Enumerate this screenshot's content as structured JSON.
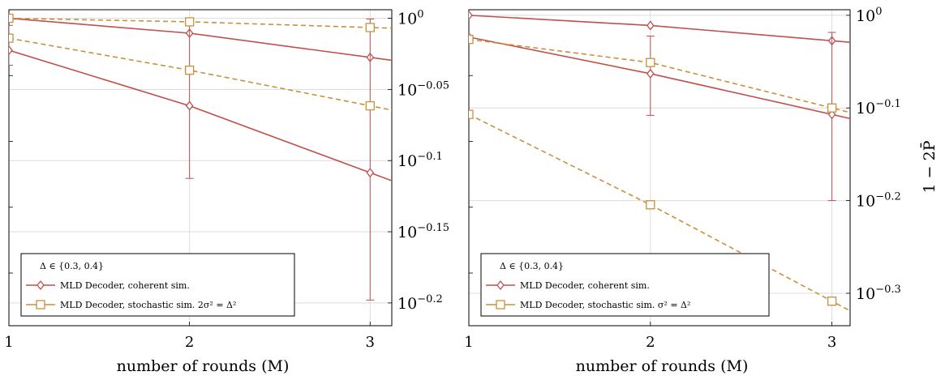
{
  "colors": {
    "coherent": "#c0504d",
    "stochastic": "#c8913a",
    "grid": "#dcdcdc",
    "axis": "#000000"
  },
  "right_axis_label": "1 − 2P̄",
  "chart_data": [
    {
      "type": "line",
      "xlabel": "number of rounds (M)",
      "ylabel": "",
      "x": [
        1,
        2,
        3
      ],
      "xticks": [
        "1",
        "2",
        "3"
      ],
      "xlim": [
        1,
        3.12
      ],
      "yscale": "log10",
      "ylim_log10": [
        -0.216,
        0.006
      ],
      "yticks": [
        {
          "log10": 0,
          "label": "10^0"
        },
        {
          "log10": -0.05,
          "label": "10^−0.05"
        },
        {
          "log10": -0.1,
          "label": "10^−0.1"
        },
        {
          "log10": -0.15,
          "label": "10^−0.15"
        },
        {
          "log10": -0.2,
          "label": "10^−0.2"
        }
      ],
      "grid": true,
      "legend": {
        "placement": "bottom-left",
        "title": "Δ ∈ {0.3, 0.4}",
        "entries": [
          "MLD Decoder, coherent sim.",
          "MLD Decoder, stochastic sim. 2σ² = Δ²"
        ]
      },
      "series": [
        {
          "key": "coherent",
          "marker": "diamond",
          "dash": false,
          "log10": [
            0,
            -0.0105,
            -0.0275
          ]
        },
        {
          "key": "coherent",
          "marker": "diamond",
          "dash": false,
          "log10": [
            -0.0225,
            -0.0615,
            -0.1085
          ],
          "err": [
            {
              "lo": -0.033,
              "hi": -0.005
            },
            {
              "lo": -0.1125,
              "hi": -0.0005
            },
            {
              "lo": -0.198,
              "hi": -0.0005
            }
          ]
        },
        {
          "key": "stochastic",
          "marker": "square",
          "dash": true,
          "log10": [
            0,
            -0.0025,
            -0.0065
          ]
        },
        {
          "key": "stochastic",
          "marker": "square",
          "dash": true,
          "log10": [
            -0.014,
            -0.0365,
            -0.0615
          ]
        }
      ]
    },
    {
      "type": "line",
      "xlabel": "number of rounds (M)",
      "ylabel": "1 − 2P̄",
      "x": [
        1,
        2,
        3
      ],
      "xticks": [
        "1",
        "2",
        "3"
      ],
      "xlim": [
        1,
        3.1
      ],
      "yscale": "log10",
      "ylim_log10": [
        -0.335,
        0.006
      ],
      "yticks": [
        {
          "log10": 0,
          "label": "10^0"
        },
        {
          "log10": -0.1,
          "label": "10^−0.1"
        },
        {
          "log10": -0.2,
          "label": "10^−0.2"
        },
        {
          "log10": -0.3,
          "label": "10^−0.3"
        }
      ],
      "grid": true,
      "legend": {
        "placement": "bottom-left",
        "title": "Δ ∈ {0.3, 0.4}",
        "entries": [
          "MLD Decoder, coherent sim.",
          "MLD Decoder, stochastic sim. σ² = Δ²"
        ]
      },
      "series": [
        {
          "key": "coherent",
          "marker": "diamond",
          "dash": false,
          "log10": [
            0,
            -0.011,
            -0.0275
          ]
        },
        {
          "key": "coherent",
          "marker": "diamond",
          "dash": false,
          "log10": [
            -0.0235,
            -0.063,
            -0.107
          ],
          "err": [
            {
              "lo": -0.0235,
              "hi": -0.0235
            },
            {
              "lo": -0.108,
              "hi": -0.0225
            },
            {
              "lo": -0.2,
              "hi": -0.0185
            }
          ]
        },
        {
          "key": "stochastic",
          "marker": "square",
          "dash": true,
          "log10": [
            -0.026,
            -0.051,
            -0.1
          ]
        },
        {
          "key": "stochastic",
          "marker": "square",
          "dash": true,
          "log10": [
            -0.107,
            -0.2045,
            -0.3085
          ]
        }
      ]
    }
  ]
}
